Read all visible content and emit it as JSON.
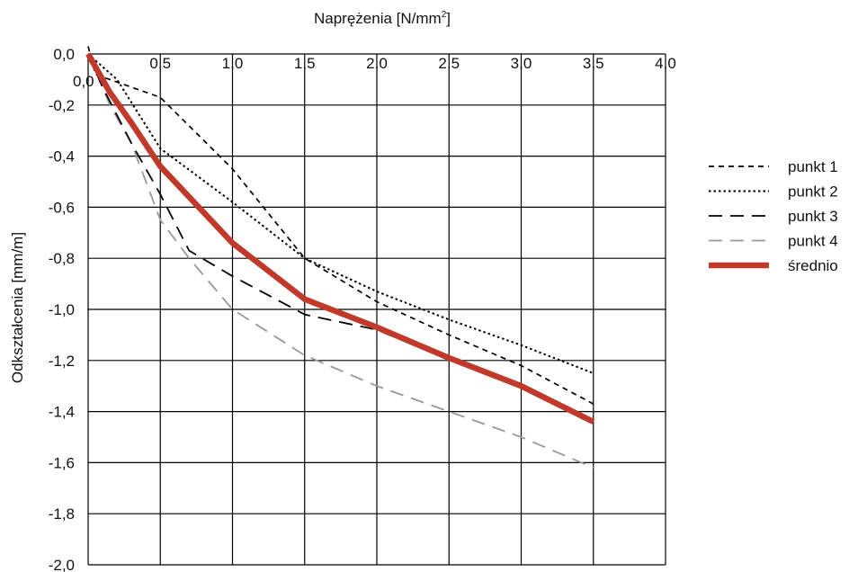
{
  "chart_data": {
    "type": "line",
    "xlabel": "Naprężenia [N/mm²]",
    "xlabel_main": "Naprężenia [N/mm",
    "xlabel_sup": "2",
    "xlabel_end": "]",
    "ylabel": "Odkształcenia [mm/m]",
    "xlim": [
      0,
      4.0
    ],
    "ylim": [
      -2.0,
      0.0
    ],
    "x_axis_position": "top",
    "grid": true,
    "legend_position": "right",
    "x_ticks": [
      {
        "value": 0.5,
        "label": "0,5"
      },
      {
        "value": 1.0,
        "label": "1,0"
      },
      {
        "value": 1.5,
        "label": "1,5"
      },
      {
        "value": 2.0,
        "label": "2,0"
      },
      {
        "value": 2.5,
        "label": "2,5"
      },
      {
        "value": 3.0,
        "label": "3,0"
      },
      {
        "value": 3.5,
        "label": "3,5"
      },
      {
        "value": 4.0,
        "label": "4,0"
      }
    ],
    "x_origin_label": "0,0",
    "y_ticks": [
      {
        "value": 0.0,
        "label": "0,0"
      },
      {
        "value": -0.2,
        "label": "-0,2"
      },
      {
        "value": -0.4,
        "label": "-0,4"
      },
      {
        "value": -0.6,
        "label": "-0,6"
      },
      {
        "value": -0.8,
        "label": "-0,8"
      },
      {
        "value": -1.0,
        "label": "-1,0"
      },
      {
        "value": -1.2,
        "label": "-1,2"
      },
      {
        "value": -1.4,
        "label": "-1,4"
      },
      {
        "value": -1.6,
        "label": "-1,6"
      },
      {
        "value": -1.8,
        "label": "-1,8"
      },
      {
        "value": -2.0,
        "label": "-2,0"
      }
    ],
    "series": [
      {
        "name": "punkt 1",
        "color": "#000000",
        "style": "dash",
        "points": [
          [
            0,
            0.03
          ],
          [
            0.05,
            -0.08
          ],
          [
            0.5,
            -0.17
          ],
          [
            1.0,
            -0.45
          ],
          [
            1.5,
            -0.8
          ],
          [
            2.0,
            -0.97
          ],
          [
            2.5,
            -1.1
          ],
          [
            3.0,
            -1.22
          ],
          [
            3.5,
            -1.37
          ]
        ]
      },
      {
        "name": "punkt 2",
        "color": "#000000",
        "style": "dot",
        "points": [
          [
            0,
            0.0
          ],
          [
            0.2,
            -0.1
          ],
          [
            0.5,
            -0.37
          ],
          [
            1.0,
            -0.58
          ],
          [
            1.5,
            -0.8
          ],
          [
            2.0,
            -0.93
          ],
          [
            2.5,
            -1.04
          ],
          [
            3.0,
            -1.14
          ],
          [
            3.5,
            -1.25
          ]
        ]
      },
      {
        "name": "punkt 3",
        "color": "#000000",
        "style": "longdash",
        "points": [
          [
            0,
            0.0
          ],
          [
            0.1,
            -0.13
          ],
          [
            0.3,
            -0.35
          ],
          [
            0.5,
            -0.55
          ],
          [
            0.7,
            -0.77
          ],
          [
            1.0,
            -0.87
          ],
          [
            1.5,
            -1.02
          ],
          [
            2.0,
            -1.08
          ],
          [
            2.3,
            -1.15
          ]
        ]
      },
      {
        "name": "punkt 4",
        "color": "#999999",
        "style": "longdash",
        "points": [
          [
            0,
            0.0
          ],
          [
            0.05,
            -0.06
          ],
          [
            0.15,
            -0.2
          ],
          [
            0.3,
            -0.35
          ],
          [
            0.5,
            -0.65
          ],
          [
            0.7,
            -0.8
          ],
          [
            1.0,
            -1.0
          ],
          [
            1.5,
            -1.18
          ],
          [
            2.0,
            -1.3
          ],
          [
            2.5,
            -1.4
          ],
          [
            3.0,
            -1.5
          ],
          [
            3.5,
            -1.62
          ]
        ]
      },
      {
        "name": "średnio",
        "color": "#c0392b",
        "style": "solid",
        "points": [
          [
            0,
            0.0
          ],
          [
            0.15,
            -0.15
          ],
          [
            0.3,
            -0.27
          ],
          [
            0.5,
            -0.44
          ],
          [
            1.0,
            -0.74
          ],
          [
            1.5,
            -0.96
          ],
          [
            2.0,
            -1.07
          ],
          [
            2.5,
            -1.19
          ],
          [
            3.0,
            -1.3
          ],
          [
            3.5,
            -1.44
          ]
        ]
      }
    ]
  }
}
